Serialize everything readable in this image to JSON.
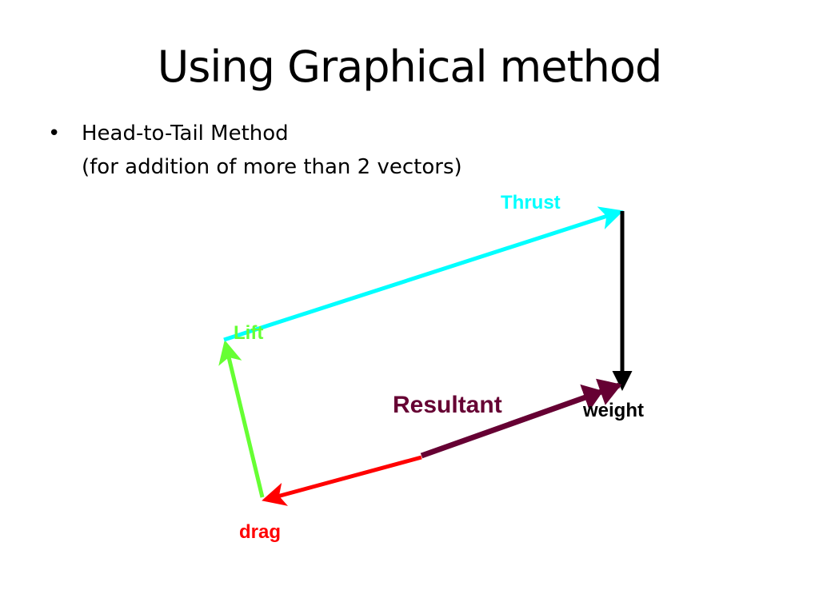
{
  "slide": {
    "title": "Using Graphical method",
    "bullets": [
      "Head-to-Tail Method",
      "(for addition of more than 2 vectors)"
    ]
  },
  "diagram": {
    "vectors": [
      {
        "name": "drag",
        "label": "drag",
        "color": "#ff0000"
      },
      {
        "name": "lift",
        "label": "Lift",
        "color": "#66ff33"
      },
      {
        "name": "thrust",
        "label": "Thrust",
        "color": "#00ffff"
      },
      {
        "name": "weight",
        "label": "weight",
        "color": "#000000"
      },
      {
        "name": "resultant",
        "label": "Resultant",
        "color": "#660033"
      }
    ]
  }
}
